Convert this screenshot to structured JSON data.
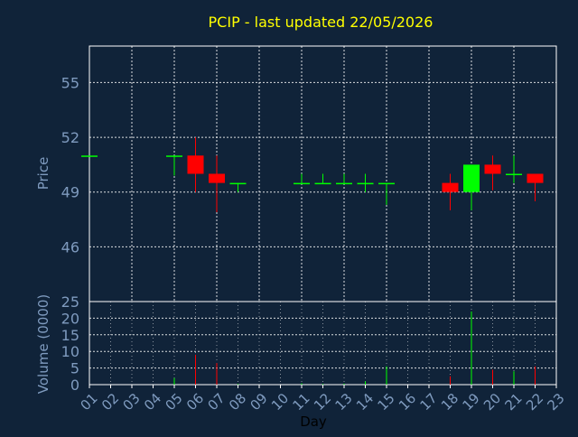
{
  "colors": {
    "background": "#102339",
    "axis": "#ffffff",
    "grid": "#ffffff",
    "tick_text": "#7f9bbf",
    "title_text": "#ffff00",
    "axis_label_text": "#7f9bbf",
    "up": "#00ff00",
    "down": "#ff0000"
  },
  "chart_data": [
    {
      "type": "candlestick",
      "title": "PCIP - last updated 22/05/2026",
      "ylabel": "Price",
      "xlabel": "",
      "ylim": [
        43,
        57
      ],
      "yticks": [
        46,
        49,
        52,
        55
      ],
      "grid": true,
      "x": [
        "01",
        "02",
        "03",
        "04",
        "05",
        "06",
        "07",
        "08",
        "09",
        "10",
        "11",
        "12",
        "13",
        "14",
        "15",
        "16",
        "17",
        "18",
        "19",
        "20",
        "21",
        "22",
        "23"
      ],
      "candles": [
        {
          "day": "01",
          "open": 51.0,
          "close": 51.0,
          "high": 51.0,
          "low": 51.0
        },
        {
          "day": "05",
          "open": 51.0,
          "close": 51.0,
          "high": 51.0,
          "low": 49.9
        },
        {
          "day": "06",
          "open": 51.0,
          "close": 50.0,
          "high": 52.0,
          "low": 49.0
        },
        {
          "day": "07",
          "open": 50.0,
          "close": 49.5,
          "high": 51.0,
          "low": 47.9
        },
        {
          "day": "08",
          "open": 49.5,
          "close": 49.5,
          "high": 49.5,
          "low": 49.0
        },
        {
          "day": "11",
          "open": 49.5,
          "close": 49.5,
          "high": 50.0,
          "low": 49.5
        },
        {
          "day": "12",
          "open": 49.5,
          "close": 49.5,
          "high": 50.0,
          "low": 49.5
        },
        {
          "day": "13",
          "open": 49.5,
          "close": 49.5,
          "high": 50.0,
          "low": 49.5
        },
        {
          "day": "14",
          "open": 49.5,
          "close": 49.5,
          "high": 50.0,
          "low": 49.0
        },
        {
          "day": "15",
          "open": 49.5,
          "close": 49.5,
          "high": 49.5,
          "low": 48.3
        },
        {
          "day": "18",
          "open": 49.5,
          "close": 49.0,
          "high": 50.0,
          "low": 48.0
        },
        {
          "day": "19",
          "open": 49.0,
          "close": 50.5,
          "high": 50.5,
          "low": 48.0
        },
        {
          "day": "20",
          "open": 50.5,
          "close": 50.0,
          "high": 51.0,
          "low": 49.1
        },
        {
          "day": "21",
          "open": 50.0,
          "close": 50.0,
          "high": 51.0,
          "low": 49.5
        },
        {
          "day": "22",
          "open": 50.0,
          "close": 49.5,
          "high": 50.0,
          "low": 48.5
        }
      ]
    },
    {
      "type": "bar",
      "ylabel": "Volume (0000)",
      "xlabel": "Day",
      "ylim": [
        0,
        25
      ],
      "yticks": [
        0,
        5,
        10,
        15,
        20,
        25
      ],
      "grid": true,
      "categories": [
        "01",
        "02",
        "03",
        "04",
        "05",
        "06",
        "07",
        "08",
        "09",
        "10",
        "11",
        "12",
        "13",
        "14",
        "15",
        "16",
        "17",
        "18",
        "19",
        "20",
        "21",
        "22",
        "23"
      ],
      "bars": [
        {
          "day": "01",
          "value": 0.0,
          "direction": "up"
        },
        {
          "day": "05",
          "value": 2.0,
          "direction": "up"
        },
        {
          "day": "06",
          "value": 9.0,
          "direction": "down"
        },
        {
          "day": "07",
          "value": 6.5,
          "direction": "down"
        },
        {
          "day": "08",
          "value": 0.2,
          "direction": "up"
        },
        {
          "day": "11",
          "value": 0.4,
          "direction": "up"
        },
        {
          "day": "12",
          "value": 0.2,
          "direction": "up"
        },
        {
          "day": "13",
          "value": 0.3,
          "direction": "up"
        },
        {
          "day": "14",
          "value": 1.0,
          "direction": "up"
        },
        {
          "day": "15",
          "value": 5.5,
          "direction": "up"
        },
        {
          "day": "18",
          "value": 2.5,
          "direction": "down"
        },
        {
          "day": "19",
          "value": 22.0,
          "direction": "up"
        },
        {
          "day": "20",
          "value": 4.5,
          "direction": "down"
        },
        {
          "day": "21",
          "value": 4.0,
          "direction": "up"
        },
        {
          "day": "22",
          "value": 5.5,
          "direction": "down"
        }
      ]
    }
  ]
}
